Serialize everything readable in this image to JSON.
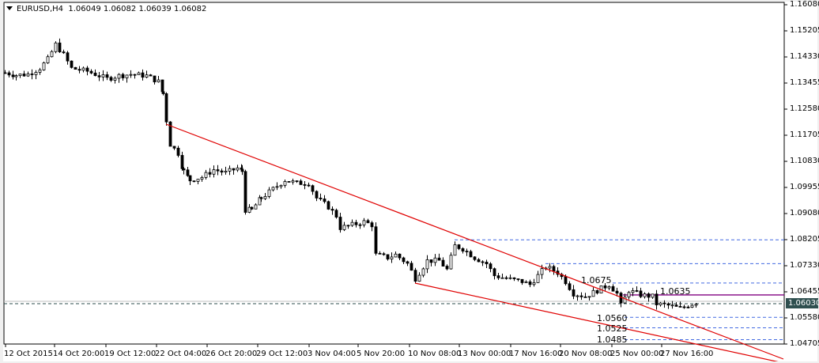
{
  "header": {
    "symbol": "EURUSD,H4",
    "ohlc": "1.06049 1.06082 1.06039 1.06082"
  },
  "y_axis": {
    "ticks": [
      "1.16080",
      "1.15205",
      "1.14330",
      "1.13455",
      "1.12580",
      "1.11705",
      "1.10830",
      "1.09955",
      "1.09080",
      "1.08205",
      "1.07330",
      "1.06455",
      "1.05580",
      "1.04705"
    ],
    "current_price": "1.06030"
  },
  "x_axis": {
    "ticks": [
      "12 Oct 2015",
      "14 Oct 20:00",
      "19 Oct 12:00",
      "22 Oct 04:00",
      "26 Oct 20:00",
      "29 Oct 12:00",
      "3 Nov 04:00",
      "5 Nov 20:00",
      "10 Nov 08:00",
      "13 Nov 00:00",
      "17 Nov 16:00",
      "20 Nov 08:00",
      "25 Nov 00:00",
      "27 Nov 16:00"
    ]
  },
  "levels": {
    "l1": "1.0675",
    "l2": "1.0635",
    "l3": "1.0560",
    "l4": "1.0525",
    "l5": "1.0485"
  },
  "colors": {
    "trendline": "#e00000",
    "dashed_level": "#4169e1",
    "resistance": "#800080",
    "bid_line": "#2f4f4f",
    "candle": "#000000"
  },
  "chart_data": {
    "type": "candlestick",
    "title": "EURUSD,H4",
    "subtitle": "1.06049 1.06082 1.06039 1.06082",
    "xlabel": "",
    "ylabel": "",
    "ylim": [
      1.04705,
      1.1608
    ],
    "grid": false,
    "categories": [
      "12 Oct 2015",
      "14 Oct 20:00",
      "19 Oct 12:00",
      "22 Oct 04:00",
      "26 Oct 20:00",
      "29 Oct 12:00",
      "3 Nov 04:00",
      "5 Nov 20:00",
      "10 Nov 08:00",
      "13 Nov 00:00",
      "17 Nov 16:00",
      "20 Nov 08:00",
      "25 Nov 00:00",
      "27 Nov 16:00"
    ],
    "approx_close_path": [
      [
        6,
        1.138
      ],
      [
        20,
        1.1372
      ],
      [
        35,
        1.1375
      ],
      [
        50,
        1.1395
      ],
      [
        60,
        1.1425
      ],
      [
        70,
        1.1475
      ],
      [
        80,
        1.144
      ],
      [
        90,
        1.1395
      ],
      [
        110,
        1.1385
      ],
      [
        135,
        1.136
      ],
      [
        150,
        1.137
      ],
      [
        165,
        1.1375
      ],
      [
        185,
        1.137
      ],
      [
        200,
        1.135
      ],
      [
        206,
        1.131
      ],
      [
        210,
        1.122
      ],
      [
        215,
        1.114
      ],
      [
        225,
        1.111
      ],
      [
        232,
        1.105
      ],
      [
        240,
        1.102
      ],
      [
        255,
        1.103
      ],
      [
        270,
        1.1055
      ],
      [
        285,
        1.1045
      ],
      [
        300,
        1.106
      ],
      [
        306,
        1.105
      ],
      [
        310,
        1.092
      ],
      [
        318,
        1.092
      ],
      [
        330,
        1.096
      ],
      [
        345,
        1.099
      ],
      [
        360,
        1.102
      ],
      [
        375,
        1.101
      ],
      [
        390,
        1.101
      ],
      [
        400,
        1.096
      ],
      [
        415,
        1.093
      ],
      [
        425,
        1.09
      ],
      [
        430,
        1.086
      ],
      [
        445,
        1.087
      ],
      [
        460,
        1.088
      ],
      [
        470,
        1.087
      ],
      [
        475,
        1.077
      ],
      [
        490,
        1.076
      ],
      [
        500,
        1.077
      ],
      [
        515,
        1.074
      ],
      [
        525,
        1.069
      ],
      [
        540,
        1.075
      ],
      [
        555,
        1.075
      ],
      [
        565,
        1.072
      ],
      [
        575,
        1.08
      ],
      [
        585,
        1.079
      ],
      [
        600,
        1.076
      ],
      [
        615,
        1.074
      ],
      [
        625,
        1.07
      ],
      [
        640,
        1.069
      ],
      [
        660,
        1.068
      ],
      [
        670,
        1.067
      ],
      [
        680,
        1.07
      ],
      [
        690,
        1.073
      ],
      [
        705,
        1.071
      ],
      [
        715,
        1.068
      ],
      [
        725,
        1.064
      ],
      [
        740,
        1.063
      ],
      [
        755,
        1.065
      ],
      [
        770,
        1.067
      ],
      [
        780,
        1.064
      ],
      [
        785,
        1.06
      ],
      [
        795,
        1.065
      ],
      [
        810,
        1.0635
      ],
      [
        825,
        1.063
      ],
      [
        830,
        1.0605
      ],
      [
        845,
        1.06
      ],
      [
        860,
        1.059
      ],
      [
        870,
        1.06
      ],
      [
        880,
        1.061
      ],
      [
        884,
        1.0608
      ]
    ],
    "annotations": {
      "upper_trendline": {
        "from": [
          "22 Oct 04:00",
          1.122
        ],
        "to": [
          "projection",
          1.0475
        ]
      },
      "lower_trendline": {
        "from": [
          "10 Nov 08:00",
          1.069
        ],
        "to": [
          "projection",
          1.047
        ]
      },
      "horizontal_levels": [
        1.082,
        1.074,
        1.0675,
        1.0635,
        1.056,
        1.0525,
        1.0485
      ],
      "level_labels": [
        "1.0675",
        "1.0635",
        "1.0560",
        "1.0525",
        "1.0485"
      ],
      "current_price": 1.0603
    }
  }
}
